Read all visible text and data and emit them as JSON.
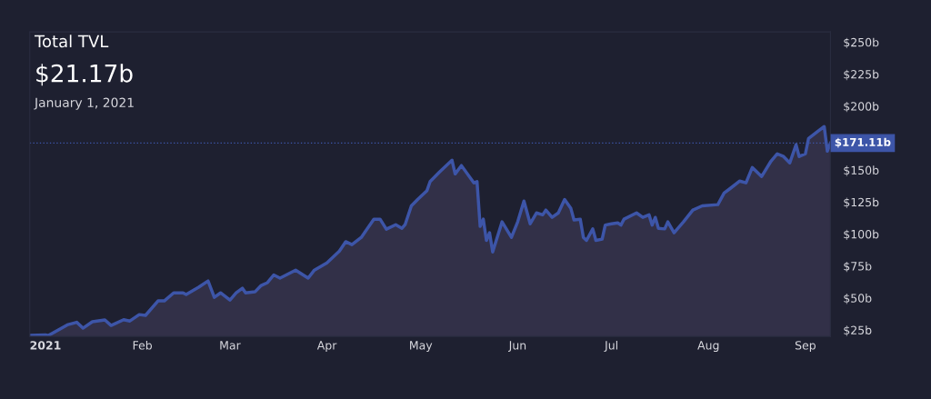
{
  "chart_data": {
    "type": "area",
    "title": "Total TVL",
    "subtitle": "$21.17b",
    "annotations": [
      "January 1, 2021"
    ],
    "x": [
      "2020-12-27",
      "2021-01-01",
      "2021-01-02",
      "2021-01-08",
      "2021-01-11",
      "2021-01-13",
      "2021-01-16",
      "2021-01-20",
      "2021-01-22",
      "2021-01-26",
      "2021-01-28",
      "2021-01-31",
      "2021-02-02",
      "2021-02-06",
      "2021-02-08",
      "2021-02-11",
      "2021-02-14",
      "2021-02-15",
      "2021-02-19",
      "2021-02-22",
      "2021-02-24",
      "2021-02-26",
      "2021-03-01",
      "2021-03-03",
      "2021-03-05",
      "2021-03-06",
      "2021-03-09",
      "2021-03-11",
      "2021-03-13",
      "2021-03-15",
      "2021-03-17",
      "2021-03-22",
      "2021-03-26",
      "2021-03-28",
      "2021-04-01",
      "2021-04-05",
      "2021-04-07",
      "2021-04-09",
      "2021-04-12",
      "2021-04-16",
      "2021-04-18",
      "2021-04-20",
      "2021-04-23",
      "2021-04-25",
      "2021-04-26",
      "2021-04-28",
      "2021-04-30",
      "2021-05-03",
      "2021-05-04",
      "2021-05-07",
      "2021-05-11",
      "2021-05-12",
      "2021-05-14",
      "2021-05-18",
      "2021-05-19",
      "2021-05-20",
      "2021-05-21",
      "2021-05-22",
      "2021-05-23",
      "2021-05-24",
      "2021-05-27",
      "2021-05-30",
      "2021-06-01",
      "2021-06-03",
      "2021-06-05",
      "2021-06-07",
      "2021-06-09",
      "2021-06-10",
      "2021-06-12",
      "2021-06-14",
      "2021-06-16",
      "2021-06-18",
      "2021-06-19",
      "2021-06-21",
      "2021-06-22",
      "2021-06-23",
      "2021-06-25",
      "2021-06-26",
      "2021-06-28",
      "2021-06-29",
      "2021-07-01",
      "2021-07-03",
      "2021-07-04",
      "2021-07-05",
      "2021-07-09",
      "2021-07-11",
      "2021-07-13",
      "2021-07-14",
      "2021-07-15",
      "2021-07-16",
      "2021-07-18",
      "2021-07-19",
      "2021-07-21",
      "2021-07-24",
      "2021-07-27",
      "2021-07-30",
      "2021-08-04",
      "2021-08-06",
      "2021-08-08",
      "2021-08-11",
      "2021-08-13",
      "2021-08-15",
      "2021-08-18",
      "2021-08-21",
      "2021-08-23",
      "2021-08-25",
      "2021-08-27",
      "2021-08-29",
      "2021-08-30",
      "2021-09-01",
      "2021-09-02",
      "2021-09-05",
      "2021-09-07",
      "2021-09-08",
      "2021-09-09"
    ],
    "series": [
      {
        "color": "#3d55a8",
        "values": [
          20.7,
          21.17,
          20.7,
          29,
          31,
          26.4,
          31.4,
          32.8,
          28.5,
          33,
          32,
          37,
          36.4,
          47.7,
          47.7,
          54,
          54,
          52.7,
          58.4,
          63.3,
          50.5,
          54,
          48.4,
          54,
          57.6,
          54,
          54.8,
          59.8,
          62,
          68,
          65.5,
          71.8,
          65.5,
          71.8,
          77.5,
          86.7,
          94,
          91.7,
          97.4,
          111.6,
          111.6,
          103.8,
          107.3,
          104.5,
          107.3,
          122,
          127,
          134,
          141,
          148.5,
          157.7,
          147,
          153.5,
          140,
          141,
          106,
          111.6,
          95,
          101,
          86,
          109.5,
          97.4,
          109.5,
          125.8,
          108,
          116.5,
          115,
          118.7,
          113,
          116.5,
          127,
          120,
          111,
          111.6,
          97.4,
          95,
          104,
          95,
          96,
          107,
          108,
          108.7,
          107,
          111.6,
          116.5,
          113,
          115,
          107,
          113,
          104.5,
          104,
          109.5,
          101,
          109.5,
          118.7,
          122,
          123,
          132,
          135.7,
          141.4,
          140,
          152,
          145,
          157,
          162.7,
          160.6,
          155.6,
          169.8,
          160.6,
          162.7,
          174.7,
          180.4,
          184,
          164.8,
          171.11
        ]
      }
    ],
    "xlim": [
      "2020-12-27",
      "2021-09-09"
    ],
    "xticks": [
      {
        "value": "2021-01-01",
        "label": "2021"
      },
      {
        "value": "2021-02-01",
        "label": "Feb"
      },
      {
        "value": "2021-03-01",
        "label": "Mar"
      },
      {
        "value": "2021-04-01",
        "label": "Apr"
      },
      {
        "value": "2021-05-01",
        "label": "May"
      },
      {
        "value": "2021-06-01",
        "label": "Jun"
      },
      {
        "value": "2021-07-01",
        "label": "Jul"
      },
      {
        "value": "2021-08-01",
        "label": "Aug"
      },
      {
        "value": "2021-09-01",
        "label": "Sep"
      }
    ],
    "ylim": [
      20,
      258
    ],
    "yticks": [
      {
        "value": 25,
        "label": "$25b"
      },
      {
        "value": 50,
        "label": "$50b"
      },
      {
        "value": 75,
        "label": "$75b"
      },
      {
        "value": 100,
        "label": "$100b"
      },
      {
        "value": 125,
        "label": "$125b"
      },
      {
        "value": 150,
        "label": "$150b"
      },
      {
        "value": 200,
        "label": "$200b"
      },
      {
        "value": 225,
        "label": "$225b"
      },
      {
        "value": 250,
        "label": "$250b"
      }
    ],
    "ref_lines": [
      {
        "axis": "y",
        "value": 171.11,
        "label": "$171.11b",
        "color": "#3d55a8",
        "line_style": "dotted"
      }
    ]
  }
}
